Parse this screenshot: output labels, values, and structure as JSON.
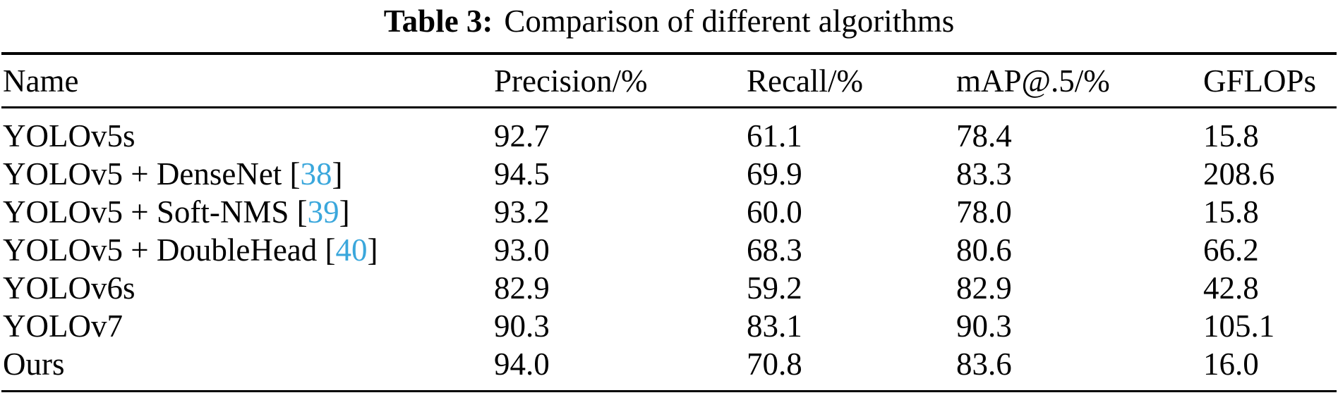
{
  "page": {
    "background_color": "#ffffff",
    "text_color": "#000000"
  },
  "caption": {
    "label": "Table 3:",
    "text": "Comparison of different algorithms"
  },
  "table": {
    "citation_color": "#3aa7dc",
    "columns": [
      "Name",
      "Precision/%",
      "Recall/%",
      "mAP@.5/%",
      "GFLOPs"
    ],
    "rows": [
      {
        "name_pre": "YOLOv5s",
        "cite": "",
        "name_post": "",
        "precision": "92.7",
        "recall": "61.1",
        "map": "78.4",
        "gflops": "15.8"
      },
      {
        "name_pre": "YOLOv5 + DenseNet [",
        "cite": "38",
        "name_post": "]",
        "precision": "94.5",
        "recall": "69.9",
        "map": "83.3",
        "gflops": "208.6"
      },
      {
        "name_pre": "YOLOv5 + Soft-NMS [",
        "cite": "39",
        "name_post": "]",
        "precision": "93.2",
        "recall": "60.0",
        "map": "78.0",
        "gflops": "15.8"
      },
      {
        "name_pre": "YOLOv5 + DoubleHead [",
        "cite": "40",
        "name_post": "]",
        "precision": "93.0",
        "recall": "68.3",
        "map": "80.6",
        "gflops": "66.2"
      },
      {
        "name_pre": "YOLOv6s",
        "cite": "",
        "name_post": "",
        "precision": "82.9",
        "recall": "59.2",
        "map": "82.9",
        "gflops": "42.8"
      },
      {
        "name_pre": "YOLOv7",
        "cite": "",
        "name_post": "",
        "precision": "90.3",
        "recall": "83.1",
        "map": "90.3",
        "gflops": "105.1"
      },
      {
        "name_pre": "Ours",
        "cite": "",
        "name_post": "",
        "precision": "94.0",
        "recall": "70.8",
        "map": "83.6",
        "gflops": "16.0"
      }
    ]
  }
}
